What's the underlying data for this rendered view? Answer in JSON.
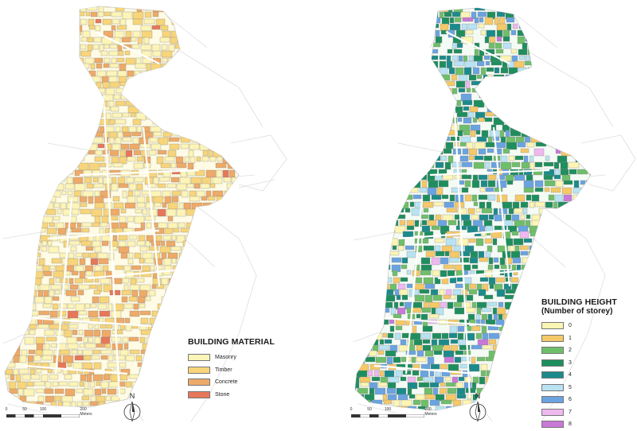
{
  "maps": [
    {
      "id": "material",
      "legend": {
        "title": "BUILDING MATERIAL",
        "subtitle": "",
        "items": [
          {
            "label": "Masonry",
            "color": "#fdf4b8"
          },
          {
            "label": "Timber",
            "color": "#f8d57a"
          },
          {
            "label": "Concrete",
            "color": "#eeaa68"
          },
          {
            "label": "Stone",
            "color": "#e7775a"
          }
        ]
      },
      "scale": {
        "ticks": [
          "0",
          "50",
          "100",
          "200 Meters"
        ]
      },
      "north": "N"
    },
    {
      "id": "height",
      "legend": {
        "title": "BUILDING HEIGHT",
        "subtitle": "(Number of storey)",
        "items": [
          {
            "label": "0",
            "color": "#fdf5b4"
          },
          {
            "label": "1",
            "color": "#f5c868"
          },
          {
            "label": "2",
            "color": "#6fbe6a"
          },
          {
            "label": "3",
            "color": "#1f8e5e"
          },
          {
            "label": "4",
            "color": "#1c8a8a"
          },
          {
            "label": "5",
            "color": "#b9e3f3"
          },
          {
            "label": "6",
            "color": "#6aa3e0"
          },
          {
            "label": "7",
            "color": "#efb8ef"
          },
          {
            "label": "8",
            "color": "#c978d8"
          }
        ]
      },
      "scale": {
        "ticks": [
          "0",
          "50",
          "100",
          "200 Meters"
        ]
      },
      "north": "N"
    }
  ]
}
